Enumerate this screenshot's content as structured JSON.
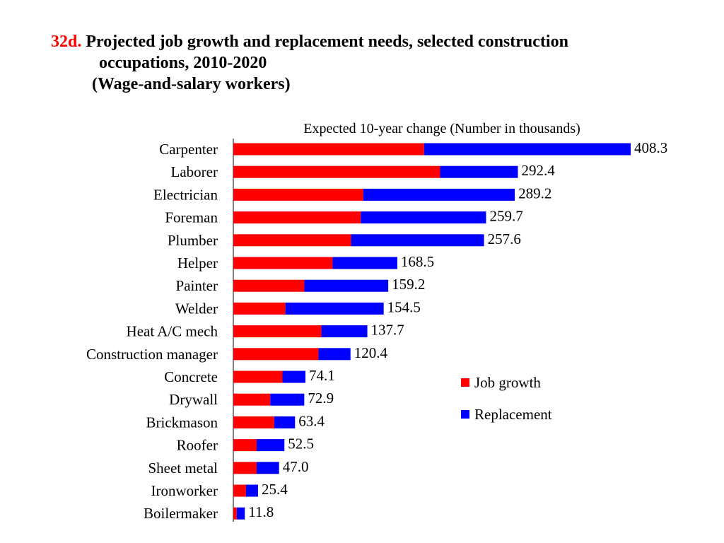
{
  "title": {
    "number": "32d.",
    "line1": "Projected job growth and replacement needs, selected construction",
    "line2": "occupations, 2010-2020",
    "line3": "(Wage-and-salary workers)"
  },
  "colors": {
    "job_growth": "#ff0000",
    "replacement": "#0000ff"
  },
  "chart_data": {
    "type": "bar",
    "orientation": "horizontal",
    "stacked": true,
    "subtitle": "Expected 10-year change (Number in thousands)",
    "categories": [
      "Carpenter",
      "Laborer",
      "Electrician",
      "Foreman",
      "Plumber",
      "Helper",
      "Painter",
      "Welder",
      "Heat A/C mech",
      "Construction manager",
      "Concrete",
      "Drywall",
      "Brickmason",
      "Roofer",
      "Sheet metal",
      "Ironworker",
      "Boilermaker"
    ],
    "series": [
      {
        "name": "Job growth",
        "values": [
          196,
          212.5,
          133.5,
          131,
          121,
          102,
          73,
          53.5,
          90.5,
          87.5,
          50.5,
          38,
          42,
          24,
          24,
          13,
          3.5
        ]
      },
      {
        "name": "Replacement",
        "values": [
          212.3,
          79.9,
          155.7,
          128.7,
          136.6,
          66.5,
          86.2,
          101,
          47.2,
          32.9,
          23.6,
          34.9,
          21.4,
          28.5,
          23,
          12.4,
          8.3
        ]
      }
    ],
    "totals": [
      "408.3",
      "292.4",
      "289.2",
      "259.7",
      "257.6",
      "168.5",
      "159.2",
      "154.5",
      "137.7",
      "120.4",
      "74.1",
      "72.9",
      "63.4",
      "52.5",
      "47.0",
      "25.4",
      "11.8"
    ],
    "legend": {
      "placement": "right-middle",
      "entries": [
        "Job growth",
        "Replacement"
      ]
    },
    "xlim": [
      0,
      408.3
    ],
    "grid": false
  }
}
